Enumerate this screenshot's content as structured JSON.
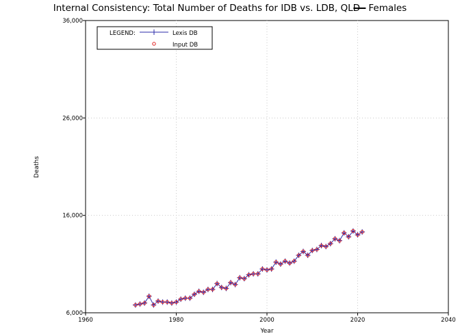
{
  "chart_data": {
    "type": "line",
    "title": "Internal Consistency: Total Number of Deaths for IDB vs. LDB, QLD",
    "title_series": "Females",
    "xlabel": "Year",
    "ylabel": "Deaths",
    "xlim": [
      1960,
      2040
    ],
    "ylim": [
      6000,
      36000
    ],
    "x_ticks": [
      1960,
      1980,
      2000,
      2020,
      2040
    ],
    "x_tick_labels": [
      "1960",
      "1980",
      "2000",
      "2020",
      "2040"
    ],
    "y_ticks": [
      6000,
      16000,
      26000,
      36000
    ],
    "y_tick_labels": [
      "6,000",
      "16,000",
      "26,000",
      "36,000"
    ],
    "grid": true,
    "legend": {
      "placement": "top-left",
      "label": "LEGEND:",
      "entries": [
        "Lexis DB",
        "Input DB"
      ]
    },
    "colors": {
      "lexis": "#2a2aa8",
      "input": "#e02020"
    },
    "x": [
      1971,
      1972,
      1973,
      1974,
      1975,
      1976,
      1977,
      1978,
      1979,
      1980,
      1981,
      1982,
      1983,
      1984,
      1985,
      1986,
      1987,
      1988,
      1989,
      1990,
      1991,
      1992,
      1993,
      1994,
      1995,
      1996,
      1997,
      1998,
      1999,
      2000,
      2001,
      2002,
      2003,
      2004,
      2005,
      2006,
      2007,
      2008,
      2009,
      2010,
      2011,
      2012,
      2013,
      2014,
      2015,
      2016,
      2017,
      2018,
      2019,
      2020,
      2021
    ],
    "series": [
      {
        "name": "Lexis DB",
        "marker": "plus",
        "values": [
          6800,
          6900,
          7000,
          7700,
          6800,
          7200,
          7100,
          7100,
          7000,
          7100,
          7400,
          7500,
          7500,
          7900,
          8200,
          8100,
          8400,
          8400,
          9000,
          8600,
          8500,
          9100,
          8900,
          9600,
          9500,
          9900,
          10000,
          10000,
          10500,
          10400,
          10500,
          11200,
          11000,
          11300,
          11100,
          11300,
          11900,
          12300,
          11900,
          12400,
          12500,
          12900,
          12800,
          13100,
          13600,
          13400,
          14200,
          13800,
          14400,
          14000,
          14300
        ]
      },
      {
        "name": "Input DB",
        "marker": "circle",
        "values": [
          6800,
          6900,
          7000,
          7700,
          6800,
          7200,
          7100,
          7100,
          7000,
          7100,
          7400,
          7500,
          7500,
          7900,
          8200,
          8100,
          8400,
          8400,
          9000,
          8600,
          8500,
          9100,
          8900,
          9600,
          9500,
          9900,
          10000,
          10000,
          10500,
          10400,
          10500,
          11200,
          11000,
          11300,
          11100,
          11300,
          11900,
          12300,
          11900,
          12400,
          12500,
          12900,
          12800,
          13100,
          13600,
          13400,
          14200,
          13800,
          14400,
          14000,
          14300
        ]
      }
    ]
  }
}
